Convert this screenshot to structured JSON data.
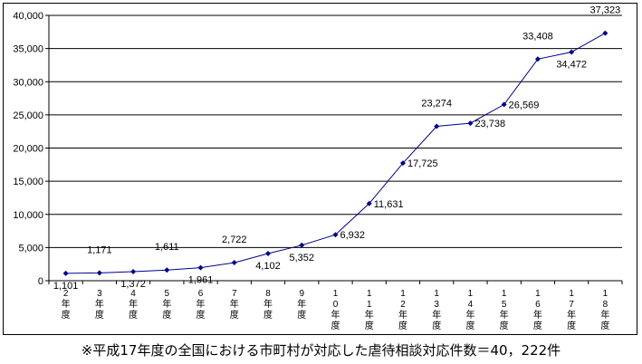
{
  "chart_data": {
    "type": "line",
    "categories": [
      [
        "2",
        "年",
        "度"
      ],
      [
        "3",
        "年",
        "度"
      ],
      [
        "4",
        "年",
        "度"
      ],
      [
        "5",
        "年",
        "度"
      ],
      [
        "6",
        "年",
        "度"
      ],
      [
        "7",
        "年",
        "度"
      ],
      [
        "8",
        "年",
        "度"
      ],
      [
        "9",
        "年",
        "度"
      ],
      [
        "1",
        "0",
        "年",
        "度"
      ],
      [
        "1",
        "1",
        "年",
        "度"
      ],
      [
        "1",
        "2",
        "年",
        "度"
      ],
      [
        "1",
        "3",
        "年",
        "度"
      ],
      [
        "1",
        "4",
        "年",
        "度"
      ],
      [
        "1",
        "5",
        "年",
        "度"
      ],
      [
        "1",
        "6",
        "年",
        "度"
      ],
      [
        "1",
        "7",
        "年",
        "度"
      ],
      [
        "1",
        "8",
        "年",
        "度"
      ]
    ],
    "values": [
      1101,
      1171,
      1372,
      1611,
      1961,
      2722,
      4102,
      5352,
      6932,
      11631,
      17725,
      23274,
      23738,
      26569,
      33408,
      34472,
      37323
    ],
    "data_labels": [
      "1,101",
      "1,171",
      "1,372",
      "1,611",
      "1,961",
      "2,722",
      "4,102",
      "5,352",
      "6,932",
      "11,631",
      "17,725",
      "23,274",
      "23,738",
      "26,569",
      "33,408",
      "34,472",
      "37,323"
    ],
    "label_positions": [
      "below",
      "above",
      "below",
      "above",
      "below",
      "above",
      "below",
      "below",
      "right",
      "right",
      "right",
      "above",
      "right",
      "right",
      "above",
      "below",
      "above"
    ],
    "ylim": [
      0,
      40000
    ],
    "y_ticks": [
      0,
      5000,
      10000,
      15000,
      20000,
      25000,
      30000,
      35000,
      40000
    ],
    "y_tick_labels": [
      "0",
      "5,000",
      "10,000",
      "15,000",
      "20,000",
      "25,000",
      "30,000",
      "35,000",
      "40,000"
    ],
    "grid": true,
    "line_color": "#00008b",
    "marker_color": "#00008b"
  },
  "note": "※平成17年度の全国における市町村が対応した虐待相談対応件数＝40，222件"
}
